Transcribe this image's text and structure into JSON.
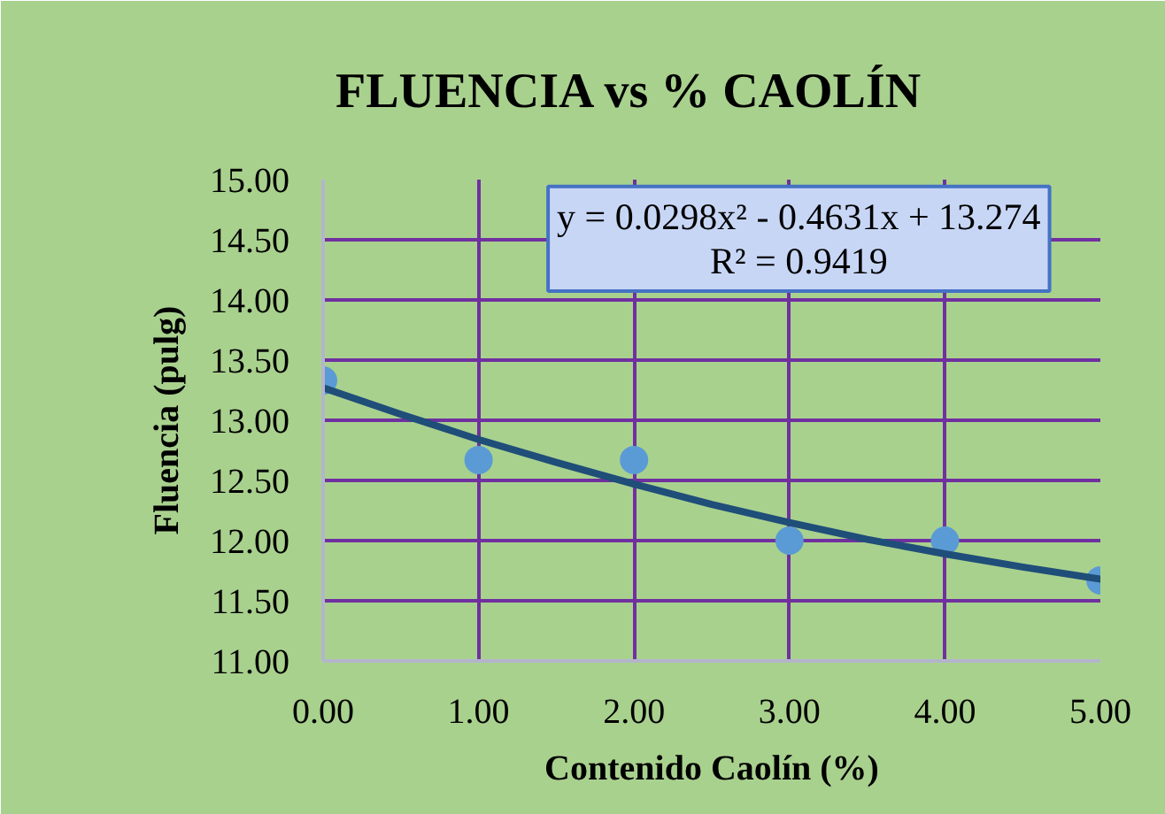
{
  "chart_data": {
    "type": "scatter",
    "title": "FLUENCIA vs % CAOLÍN",
    "xlabel": "Contenido Caolín (%)",
    "ylabel": "Fluencia (pulg)",
    "xlim": [
      0,
      5
    ],
    "ylim": [
      11,
      15
    ],
    "xticks": [
      {
        "value": 0,
        "label": "0.00"
      },
      {
        "value": 1,
        "label": "1.00"
      },
      {
        "value": 2,
        "label": "2.00"
      },
      {
        "value": 3,
        "label": "3.00"
      },
      {
        "value": 4,
        "label": "4.00"
      },
      {
        "value": 5,
        "label": "5.00"
      }
    ],
    "yticks": [
      {
        "value": 11,
        "label": "11.00"
      },
      {
        "value": 11.5,
        "label": "11.50"
      },
      {
        "value": 12,
        "label": "12.00"
      },
      {
        "value": 12.5,
        "label": "12.50"
      },
      {
        "value": 13,
        "label": "13.00"
      },
      {
        "value": 13.5,
        "label": "13.50"
      },
      {
        "value": 14,
        "label": "14.00"
      },
      {
        "value": 14.5,
        "label": "14.50"
      },
      {
        "value": 15,
        "label": "15.00"
      }
    ],
    "grid": true,
    "annotations": [
      "y = 0.0298x² - 0.4631x + 13.274",
      "R² = 0.9419"
    ],
    "series": [
      {
        "color": "#5b9bd5",
        "marker": "circle",
        "x": [
          0,
          1,
          2,
          3,
          4,
          5
        ],
        "values": [
          13.33,
          12.67,
          12.67,
          12.0,
          12.0,
          11.67
        ]
      },
      {
        "type": "line",
        "color": "#1f4e79",
        "x": [
          0,
          0.5,
          1,
          1.5,
          2,
          2.5,
          3,
          3.5,
          4,
          4.5,
          5
        ],
        "values": [
          13.27,
          13.05,
          12.84,
          12.65,
          12.47,
          12.3,
          12.15,
          12.01,
          11.89,
          11.78,
          11.68
        ]
      }
    ]
  }
}
